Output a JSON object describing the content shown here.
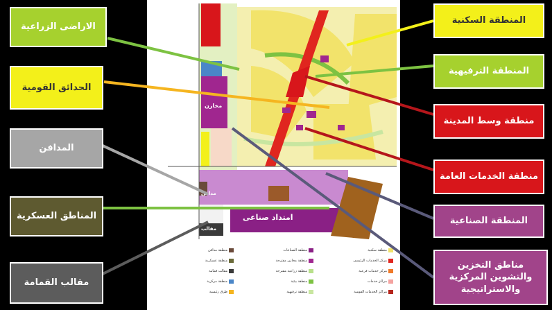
{
  "labels": {
    "agricultural": "الاراضى الزراعية",
    "parks": "الحدائق القومية",
    "cemeteries": "المدافن",
    "military": "المناطق العسكرية",
    "dumps": "مقالب القمامة",
    "residential": "المنطقة السكنية",
    "recreational": "المنطقة الترفيهية",
    "downtown": "منطقة وسط المدينة",
    "public_services": "منطقة الخدمات العامة",
    "industrial": "المنطقة الصناعية",
    "storage": "مناطق التخزين والتشوين المركزية والاستراتيجية"
  },
  "map_text": {
    "industrial_ext": "امتداد صناعى",
    "storage_map": "مخازن",
    "cemetery_map": "مدافن",
    "dump_map": "مقالب"
  },
  "legend": [
    {
      "text": "منطقة سكنية",
      "color": "#f2e36b"
    },
    {
      "text": "مركز الخدمات الرئيسى",
      "color": "#e0261f"
    },
    {
      "text": "مركز خدمات فرعية",
      "color": "#f07a2a"
    },
    {
      "text": "مراكز خدمات",
      "color": "#f4a3a0"
    },
    {
      "text": "مراكز الخدمات القومية",
      "color": "#b5261d"
    },
    {
      "text": "منطقة الصناعات",
      "color": "#8a2085"
    },
    {
      "text": "منطقة مخازن مقترحة",
      "color": "#a0268f"
    },
    {
      "text": "منطقة زراعية مقترحة",
      "color": "#b8e08a"
    },
    {
      "text": "منطقة بيئية",
      "color": "#7dc242"
    },
    {
      "text": "منطقة ترفيهية",
      "color": "#c8e6a0"
    },
    {
      "text": "منطقة مدافن",
      "color": "#6a4a3a"
    },
    {
      "text": "منطقة عسكرية",
      "color": "#6b6b3a"
    },
    {
      "text": "مقالب قمامة",
      "color": "#3a3a3a"
    },
    {
      "text": "منطقة مركزية",
      "color": "#4a86c8"
    },
    {
      "text": "طرق رئيسية",
      "color": "#f5b520"
    }
  ],
  "colors": {
    "yellow": "#f3f01a",
    "lime": "#a6d12e",
    "red": "#d8161b",
    "gray": "#a6a6a6",
    "olive": "#5e5a30",
    "purple": "#a1448a",
    "industrial": "#8b1d87"
  }
}
